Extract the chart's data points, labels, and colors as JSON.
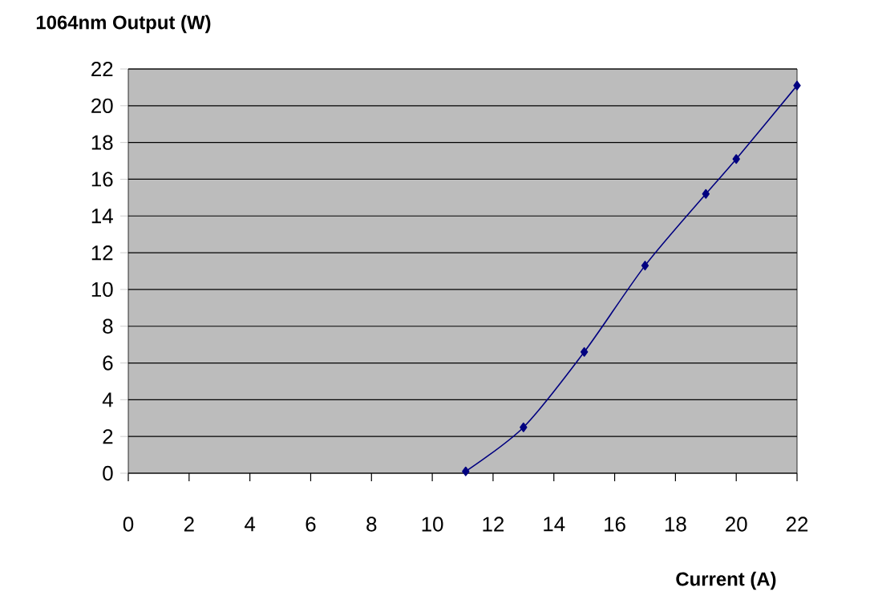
{
  "chart_data": {
    "type": "line",
    "xlabel": "Current (A)",
    "ylabel": "1064nm Output (W)",
    "x": [
      11.1,
      13,
      15,
      17,
      19,
      20,
      22
    ],
    "series": [
      {
        "color": "#000080",
        "values": [
          0.1,
          2.5,
          6.6,
          11.3,
          15.2,
          17.1,
          21.1
        ]
      }
    ],
    "xlim": [
      0,
      22
    ],
    "xticks": [
      0,
      2,
      4,
      6,
      8,
      10,
      12,
      14,
      16,
      18,
      20,
      22
    ],
    "ylim": [
      0,
      22
    ],
    "yticks": [
      0,
      2,
      4,
      6,
      8,
      10,
      12,
      14,
      16,
      18,
      20,
      22
    ],
    "grid": "y",
    "marker": "diamond",
    "line_style": "solid"
  }
}
